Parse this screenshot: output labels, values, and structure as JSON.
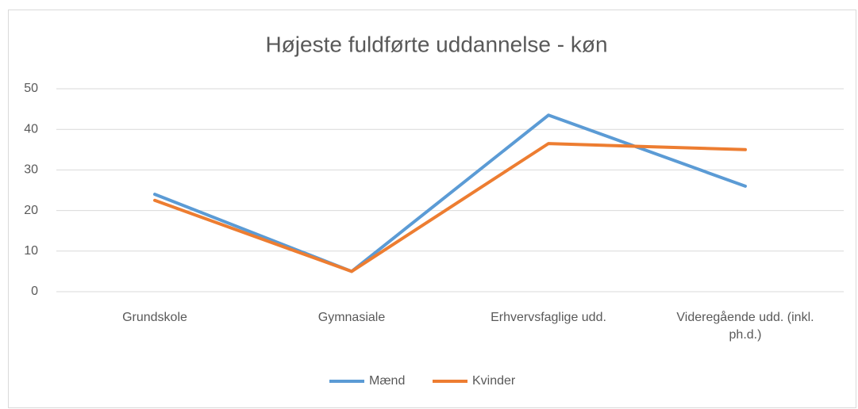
{
  "chart_data": {
    "type": "line",
    "title": "Højeste fuldførte uddannelse - køn",
    "categories": [
      "Grundskole",
      "Gymnasiale",
      "Erhvervsfaglige udd.",
      "Videregående udd. (inkl. ph.d.)"
    ],
    "series": [
      {
        "name": "Mænd",
        "color": "#5b9bd5",
        "values": [
          24,
          5,
          43.5,
          26
        ]
      },
      {
        "name": "Kvinder",
        "color": "#ed7d31",
        "values": [
          22.5,
          5,
          36.5,
          35
        ]
      }
    ],
    "ylim": [
      0,
      50
    ],
    "yticks": [
      0,
      10,
      20,
      30,
      40,
      50
    ],
    "grid": true,
    "legend": "bottom"
  }
}
